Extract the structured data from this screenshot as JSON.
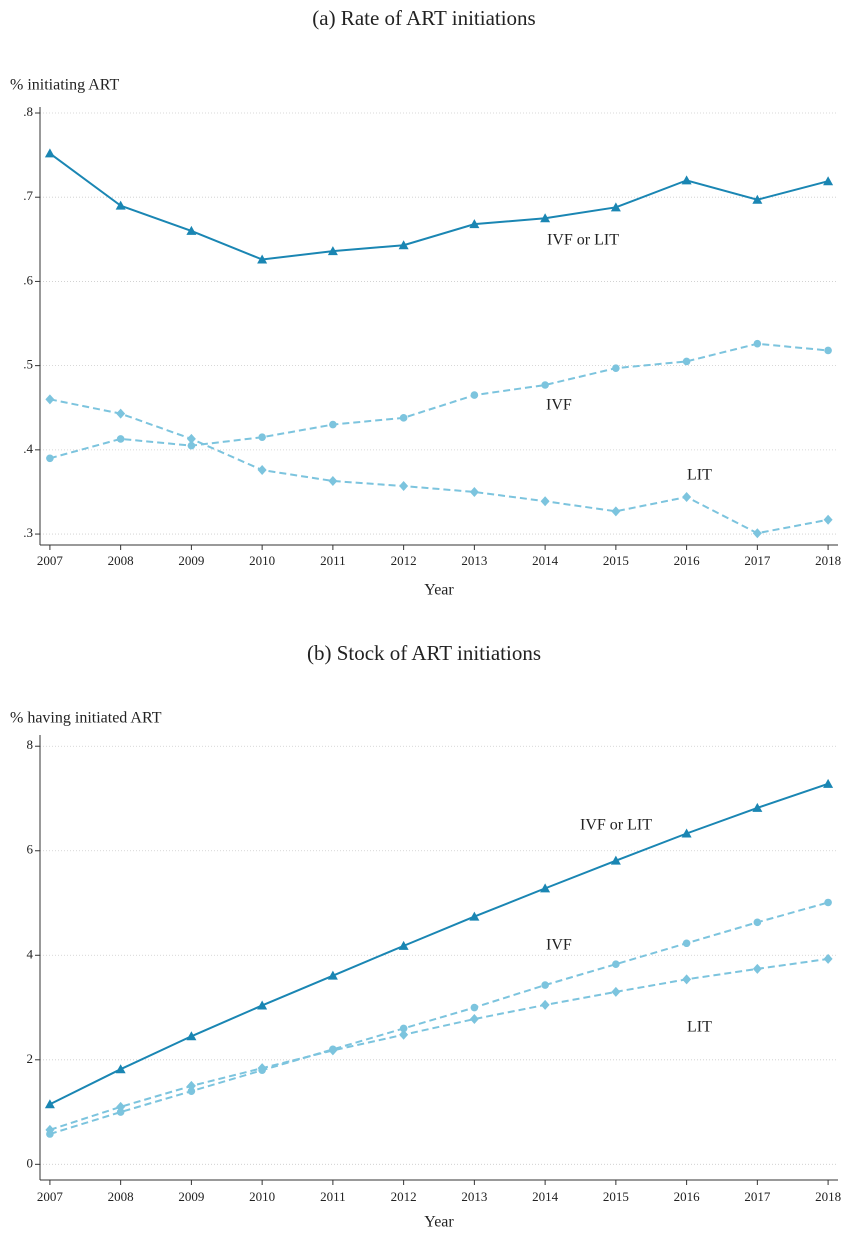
{
  "chart_data": [
    {
      "type": "line",
      "title": "(a) Rate of ART initiations",
      "ylabel": "% initiating ART",
      "xlabel": "Year",
      "x": [
        2007,
        2008,
        2009,
        2010,
        2011,
        2012,
        2013,
        2014,
        2015,
        2016,
        2017,
        2018
      ],
      "xlim": [
        2006.86,
        2018.14
      ],
      "xticks": [
        2007,
        2008,
        2009,
        2010,
        2011,
        2012,
        2013,
        2014,
        2015,
        2016,
        2017,
        2018
      ],
      "ylim": [
        0.287,
        0.8
      ],
      "yticks": [
        {
          "value": 0.3,
          "label": ".3"
        },
        {
          "value": 0.4,
          "label": ".4"
        },
        {
          "value": 0.5,
          "label": ".5"
        },
        {
          "value": 0.6,
          "label": ".6"
        },
        {
          "value": 0.7,
          "label": ".7"
        },
        {
          "value": 0.8,
          "label": ".8"
        }
      ],
      "grid": true,
      "series": [
        {
          "name": "IVF or LIT",
          "color": "#1a86b3",
          "marker": "triangle",
          "dashed": false,
          "values": [
            0.752,
            0.69,
            0.66,
            0.626,
            0.636,
            0.643,
            0.668,
            0.675,
            0.688,
            0.72,
            0.697,
            0.719
          ]
        },
        {
          "name": "IVF",
          "color": "#7cc4de",
          "marker": "circle",
          "dashed": true,
          "values": [
            0.39,
            0.413,
            0.405,
            0.415,
            0.43,
            0.438,
            0.465,
            0.477,
            0.497,
            0.505,
            0.526,
            0.518
          ]
        },
        {
          "name": "LIT",
          "color": "#7cc4de",
          "marker": "diamond",
          "dashed": true,
          "values": [
            0.46,
            0.443,
            0.413,
            0.376,
            0.363,
            0.357,
            0.35,
            0.339,
            0.327,
            0.344,
            0.301,
            0.317
          ]
        }
      ]
    },
    {
      "type": "line",
      "title": "(b) Stock of ART initiations",
      "ylabel": "% having initiated ART",
      "xlabel": "Year",
      "x": [
        2007,
        2008,
        2009,
        2010,
        2011,
        2012,
        2013,
        2014,
        2015,
        2016,
        2017,
        2018
      ],
      "xlim": [
        2006.86,
        2018.14
      ],
      "xticks": [
        2007,
        2008,
        2009,
        2010,
        2011,
        2012,
        2013,
        2014,
        2015,
        2016,
        2017,
        2018
      ],
      "ylim": [
        -0.3,
        8.1
      ],
      "yticks": [
        0,
        2,
        4,
        6,
        8
      ],
      "grid": true,
      "series": [
        {
          "name": "IVF or LIT",
          "color": "#1a86b3",
          "marker": "triangle",
          "dashed": false,
          "values": [
            1.15,
            1.82,
            2.45,
            3.04,
            3.61,
            4.18,
            4.74,
            5.28,
            5.81,
            6.33,
            6.82,
            7.28
          ]
        },
        {
          "name": "IVF",
          "color": "#7cc4de",
          "marker": "circle",
          "dashed": true,
          "values": [
            0.58,
            1.0,
            1.4,
            1.8,
            2.2,
            2.6,
            3.0,
            3.43,
            3.83,
            4.23,
            4.63,
            5.01
          ]
        },
        {
          "name": "LIT",
          "color": "#7cc4de",
          "marker": "diamond",
          "dashed": true,
          "values": [
            0.66,
            1.1,
            1.5,
            1.84,
            2.18,
            2.48,
            2.78,
            3.05,
            3.3,
            3.54,
            3.74,
            3.93
          ]
        }
      ]
    }
  ]
}
